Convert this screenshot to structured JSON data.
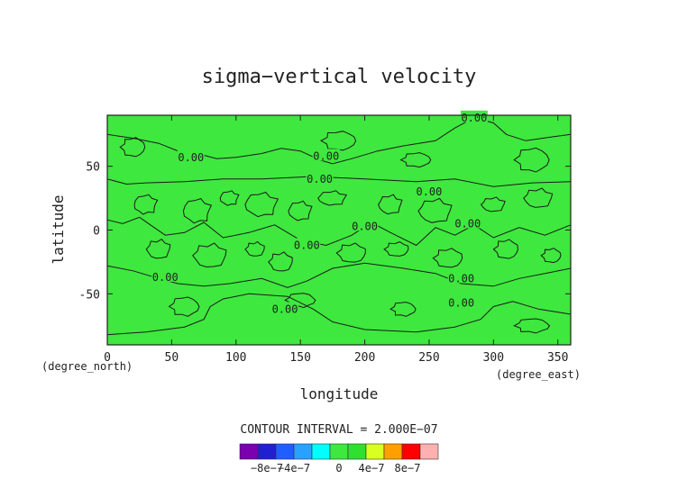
{
  "chart_data": {
    "type": "heatmap",
    "title": "sigma−vertical velocity",
    "xlabel": "longitude",
    "ylabel": "latitude",
    "x_unit": "(degree_east)",
    "y_unit": "(degree_north)",
    "xlim": [
      0,
      360
    ],
    "ylim": [
      -90,
      90
    ],
    "x_ticks": [
      0,
      50,
      100,
      150,
      200,
      250,
      300,
      350
    ],
    "y_ticks": [
      -50,
      0,
      50
    ],
    "contour_interval_text": "CONTOUR INTERVAL = 2.000E−07",
    "contour_labels": [
      {
        "text": "0.00",
        "x": 285,
        "y": 88
      },
      {
        "text": "0.00",
        "x": 65,
        "y": 57
      },
      {
        "text": "0.00",
        "x": 170,
        "y": 58
      },
      {
        "text": "0.00",
        "x": 165,
        "y": 40
      },
      {
        "text": "0.00",
        "x": 250,
        "y": 30
      },
      {
        "text": "0.00",
        "x": 280,
        "y": 5
      },
      {
        "text": "0.00",
        "x": 200,
        "y": 3
      },
      {
        "text": "0.00",
        "x": 155,
        "y": -12
      },
      {
        "text": "0.00",
        "x": 45,
        "y": -37
      },
      {
        "text": "0.00",
        "x": 275,
        "y": -38
      },
      {
        "text": "0.00",
        "x": 275,
        "y": -57
      },
      {
        "text": "0.00",
        "x": 138,
        "y": -62
      }
    ],
    "field_color": "#3ee83e",
    "contour_color": "#1a1a1a",
    "colorbar": {
      "colors": [
        "#7a00b0",
        "#2020d0",
        "#1f5fff",
        "#2aa0ff",
        "#00ffff",
        "#3ee83e",
        "#30e030",
        "#d8ff20",
        "#ffa000",
        "#ff0000",
        "#ffb0b0"
      ],
      "tick_labels": [
        "−8e−7",
        "−4e−7",
        "0",
        "4e−7",
        "8e−7"
      ]
    }
  }
}
